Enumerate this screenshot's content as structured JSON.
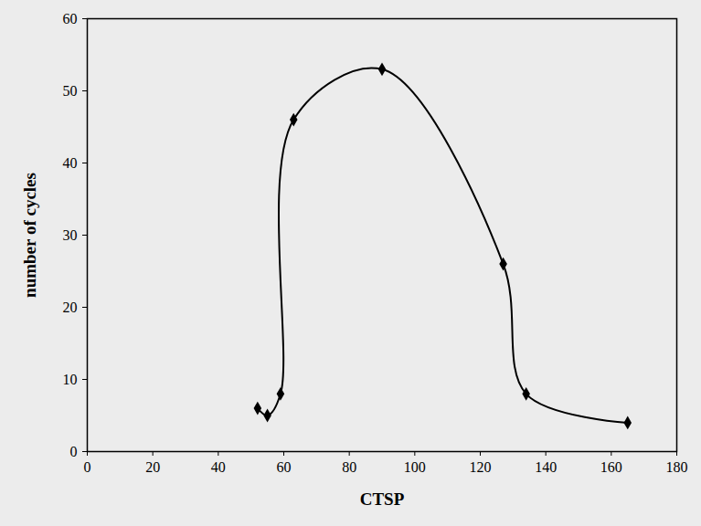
{
  "chart_data": {
    "type": "line",
    "x_label": "CTSP",
    "y_label": "number of cycles",
    "x": [
      52,
      55,
      59,
      63,
      90,
      127,
      134,
      165
    ],
    "values": [
      6,
      5,
      8,
      46,
      53,
      26,
      8,
      4
    ],
    "color": "#000000",
    "marker": "diamond",
    "line_style": "solid",
    "xlim": [
      0,
      180
    ],
    "xticks": [
      0,
      20,
      40,
      60,
      80,
      100,
      120,
      140,
      160,
      180
    ],
    "ylim": [
      0,
      60
    ],
    "yticks": [
      0,
      10,
      20,
      30,
      40,
      50,
      60
    ],
    "grid": false
  }
}
